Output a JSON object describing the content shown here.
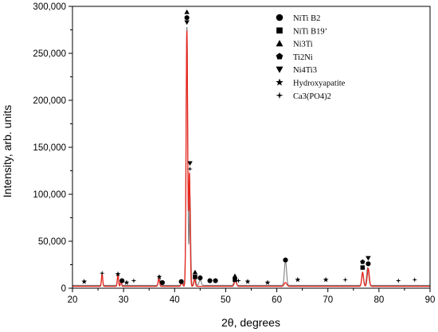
{
  "chart_data": {
    "type": "line",
    "xlabel": "2θ, degrees",
    "ylabel": "Intensity, arb. units",
    "xlim": [
      20,
      90
    ],
    "ylim": [
      0,
      300000
    ],
    "x_ticks": [
      "20",
      "30",
      "40",
      "50",
      "60",
      "70",
      "80",
      "90"
    ],
    "y_ticks": [
      "0",
      "50,000",
      "100,000",
      "150,000",
      "200,000",
      "250,000",
      "300,000"
    ],
    "grid": false,
    "legend_position": "top-right",
    "legend": [
      {
        "symbol": "circle",
        "label": "NiTi B2"
      },
      {
        "symbol": "square",
        "label": "NiTi B19’"
      },
      {
        "symbol": "triangle-up",
        "label": "Ni3Ti"
      },
      {
        "symbol": "pentagon",
        "label": "Ti2Ni"
      },
      {
        "symbol": "triangle-down",
        "label": "Ni4Ti3"
      },
      {
        "symbol": "star",
        "label": "Hydroxyapatite"
      },
      {
        "symbol": "cross-star",
        "label": "Ca3(PO4)2"
      }
    ],
    "series": [
      {
        "color": "#7f7f7f",
        "baseline": 3000,
        "peaks": [
          {
            "x": 25.8,
            "y": 12000,
            "w": 0.12
          },
          {
            "x": 28.9,
            "y": 11000,
            "w": 0.12
          },
          {
            "x": 29.5,
            "y": 7000,
            "w": 0.1
          },
          {
            "x": 37.0,
            "y": 9000,
            "w": 0.15
          },
          {
            "x": 41.5,
            "y": 6000,
            "w": 0.15
          },
          {
            "x": 42.4,
            "y": 275000,
            "w": 0.16
          },
          {
            "x": 43.0,
            "y": 95000,
            "w": 0.14
          },
          {
            "x": 44.0,
            "y": 9000,
            "w": 0.15
          },
          {
            "x": 45.0,
            "y": 6000,
            "w": 0.2
          },
          {
            "x": 51.8,
            "y": 6000,
            "w": 0.2
          },
          {
            "x": 61.7,
            "y": 27000,
            "w": 0.2
          },
          {
            "x": 76.8,
            "y": 12000,
            "w": 0.18
          },
          {
            "x": 77.8,
            "y": 19000,
            "w": 0.2
          }
        ]
      },
      {
        "color": "#e8261d",
        "baseline": 2000,
        "peaks": [
          {
            "x": 25.8,
            "y": 13000,
            "w": 0.12
          },
          {
            "x": 28.9,
            "y": 12000,
            "w": 0.12
          },
          {
            "x": 29.5,
            "y": 7000,
            "w": 0.1
          },
          {
            "x": 36.9,
            "y": 8000,
            "w": 0.15
          },
          {
            "x": 41.4,
            "y": 5000,
            "w": 0.15
          },
          {
            "x": 42.4,
            "y": 272000,
            "w": 0.15
          },
          {
            "x": 42.9,
            "y": 120000,
            "w": 0.14
          },
          {
            "x": 43.9,
            "y": 8000,
            "w": 0.15
          },
          {
            "x": 51.9,
            "y": 7000,
            "w": 0.2
          },
          {
            "x": 61.7,
            "y": 4000,
            "w": 0.25
          },
          {
            "x": 76.8,
            "y": 15000,
            "w": 0.18
          },
          {
            "x": 77.9,
            "y": 19000,
            "w": 0.2
          }
        ]
      }
    ],
    "annotations": [
      {
        "symbol": "star",
        "x": 22.3,
        "y": 7000
      },
      {
        "symbol": "cross-star",
        "x": 25.8,
        "y": 16000
      },
      {
        "symbol": "star",
        "x": 28.9,
        "y": 15000
      },
      {
        "symbol": "circle",
        "x": 29.7,
        "y": 8000
      },
      {
        "symbol": "star",
        "x": 30.6,
        "y": 6000
      },
      {
        "symbol": "cross-star",
        "x": 32.0,
        "y": 8000
      },
      {
        "symbol": "star",
        "x": 37.0,
        "y": 12000
      },
      {
        "symbol": "circle",
        "x": 37.6,
        "y": 6000
      },
      {
        "symbol": "circle",
        "x": 41.3,
        "y": 7000
      },
      {
        "symbol": "circle",
        "x": 42.4,
        "y": 288000
      },
      {
        "symbol": "triangle-up",
        "x": 42.4,
        "y": 294000
      },
      {
        "symbol": "triangle-down",
        "x": 42.4,
        "y": 283000
      },
      {
        "symbol": "triangle-down",
        "x": 43.0,
        "y": 133000
      },
      {
        "symbol": "cross-star",
        "x": 43.0,
        "y": 127000
      },
      {
        "symbol": "triangle-up",
        "x": 44.0,
        "y": 17000
      },
      {
        "symbol": "square",
        "x": 44.0,
        "y": 12000
      },
      {
        "symbol": "circle",
        "x": 45.0,
        "y": 11000
      },
      {
        "symbol": "circle",
        "x": 46.9,
        "y": 8000
      },
      {
        "symbol": "circle",
        "x": 48.0,
        "y": 8000
      },
      {
        "symbol": "triangle-up",
        "x": 51.8,
        "y": 13000
      },
      {
        "symbol": "square",
        "x": 51.8,
        "y": 9000
      },
      {
        "symbol": "cross-star",
        "x": 52.5,
        "y": 8000
      },
      {
        "symbol": "star",
        "x": 54.3,
        "y": 7000
      },
      {
        "symbol": "star",
        "x": 58.2,
        "y": 6000
      },
      {
        "symbol": "circle",
        "x": 61.7,
        "y": 30000
      },
      {
        "symbol": "star",
        "x": 64.1,
        "y": 9000
      },
      {
        "symbol": "star",
        "x": 69.6,
        "y": 9000
      },
      {
        "symbol": "cross-star",
        "x": 73.4,
        "y": 9000
      },
      {
        "symbol": "pentagon",
        "x": 76.8,
        "y": 28000
      },
      {
        "symbol": "square",
        "x": 76.8,
        "y": 22000
      },
      {
        "symbol": "triangle-down",
        "x": 77.9,
        "y": 32000
      },
      {
        "symbol": "circle",
        "x": 77.9,
        "y": 26000
      },
      {
        "symbol": "cross-star",
        "x": 83.8,
        "y": 8000
      },
      {
        "symbol": "cross-star",
        "x": 87.0,
        "y": 9000
      }
    ]
  }
}
